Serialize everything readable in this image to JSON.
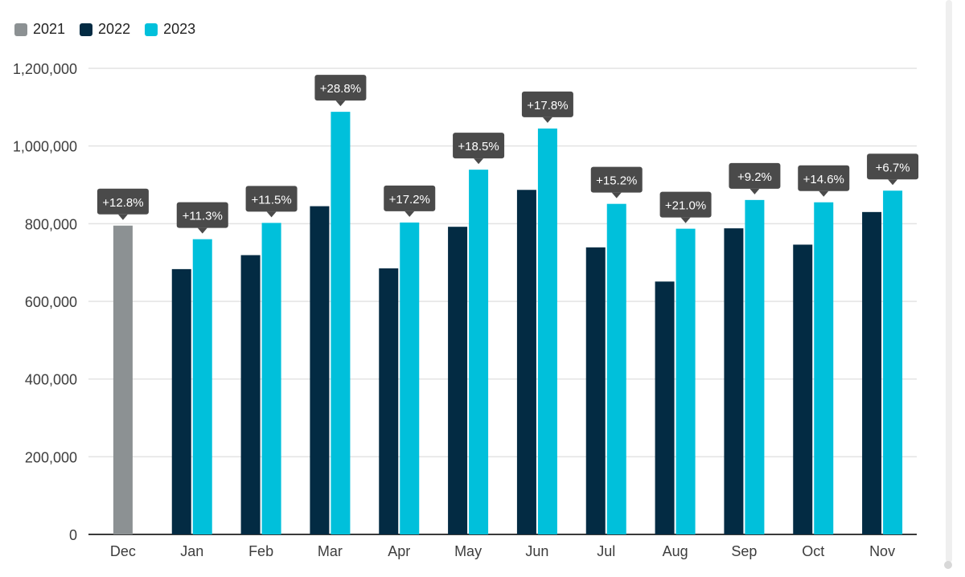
{
  "chart_data": {
    "type": "bar",
    "categories": [
      "Dec",
      "Jan",
      "Feb",
      "Mar",
      "Apr",
      "May",
      "Jun",
      "Jul",
      "Aug",
      "Sep",
      "Oct",
      "Nov"
    ],
    "series": [
      {
        "name": "2021",
        "color": "#8c9193",
        "values": [
          795000,
          null,
          null,
          null,
          null,
          null,
          null,
          null,
          null,
          null,
          null,
          null
        ]
      },
      {
        "name": "2022",
        "color": "#032b43",
        "values": [
          null,
          683000,
          719000,
          845000,
          685000,
          792000,
          887000,
          739000,
          651000,
          788000,
          746000,
          830000
        ]
      },
      {
        "name": "2023",
        "color": "#00c0db",
        "values": [
          null,
          760000,
          802000,
          1088000,
          803000,
          939000,
          1045000,
          851000,
          787000,
          861000,
          855000,
          885000
        ]
      }
    ],
    "data_labels": [
      "+12.8%",
      "+11.3%",
      "+11.5%",
      "+28.8%",
      "+17.2%",
      "+18.5%",
      "+17.8%",
      "+15.2%",
      "+21.0%",
      "+9.2%",
      "+14.6%",
      "+6.7%"
    ],
    "ylim": [
      0,
      1200000
    ],
    "y_ticks": [
      0,
      200000,
      400000,
      600000,
      800000,
      1000000,
      1200000
    ],
    "y_tick_labels": [
      "0",
      "200,000",
      "400,000",
      "600,000",
      "800,000",
      "1,000,000",
      "1,200,000"
    ],
    "title": "",
    "xlabel": "",
    "ylabel": "",
    "grid": true,
    "legend_position": "top-left"
  },
  "label_color": "#3d3d3d"
}
